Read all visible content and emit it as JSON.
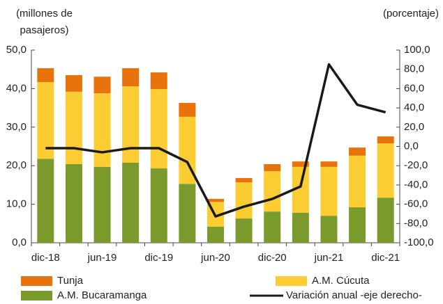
{
  "chart_data": {
    "type": "bar",
    "stacked": true,
    "y_label": "(millones de pasajeros)",
    "y2_label": "(porcentaje)",
    "categories": [
      "dic-18",
      null,
      "jun-19",
      null,
      "dic-19",
      null,
      "jun-20",
      null,
      "dic-20",
      null,
      "jun-21",
      null,
      "dic-21"
    ],
    "series": [
      {
        "name": "A.M. Bucaramanga",
        "color": "#7b9a2c",
        "values": [
          21.8,
          20.4,
          19.7,
          20.8,
          19.3,
          15.3,
          4.2,
          6.3,
          8.1,
          7.8,
          7.0,
          9.2,
          11.7
        ]
      },
      {
        "name": "A.M. Cúcuta",
        "color": "#fccd33",
        "values": [
          19.9,
          18.8,
          19.1,
          19.8,
          20.6,
          17.4,
          6.4,
          9.4,
          10.5,
          11.9,
          12.7,
          13.4,
          14.1
        ]
      },
      {
        "name": "Tunja",
        "color": "#e8730c",
        "values": [
          3.6,
          4.3,
          4.3,
          4.7,
          4.3,
          3.6,
          0.8,
          1.1,
          1.8,
          1.4,
          1.4,
          2.1,
          1.8
        ]
      },
      {
        "name": "Variación anual -eje derecho-",
        "type": "line",
        "axis": "y2",
        "color": "#1a1a1a",
        "values": [
          -1.8,
          -1.8,
          -6.1,
          -1.8,
          -1.8,
          -16.2,
          -72.6,
          -62.5,
          -54.5,
          -41.5,
          85.2,
          43.3,
          35.4
        ]
      }
    ],
    "ylim": [
      0,
      50
    ],
    "yticks": [
      {
        "value": 0,
        "label": "0,0"
      },
      {
        "value": 10,
        "label": "10,0"
      },
      {
        "value": 20,
        "label": "20,0"
      },
      {
        "value": 30,
        "label": "30,0"
      },
      {
        "value": 40,
        "label": "40,0"
      },
      {
        "value": 50,
        "label": "50,0"
      }
    ],
    "y2lim": [
      -100,
      100
    ],
    "y2ticks": [
      {
        "value": -100,
        "label": "-100,0"
      },
      {
        "value": -80,
        "label": "-80,0"
      },
      {
        "value": -60,
        "label": "-60,0"
      },
      {
        "value": -40,
        "label": "-40,0"
      },
      {
        "value": -20,
        "label": "-20,0"
      },
      {
        "value": 0,
        "label": "0,0"
      },
      {
        "value": 20,
        "label": "20,0"
      },
      {
        "value": 40,
        "label": "40,0"
      },
      {
        "value": 60,
        "label": "60,0"
      },
      {
        "value": 80,
        "label": "80,0"
      },
      {
        "value": 100,
        "label": "100,0"
      }
    ],
    "grid": false
  }
}
